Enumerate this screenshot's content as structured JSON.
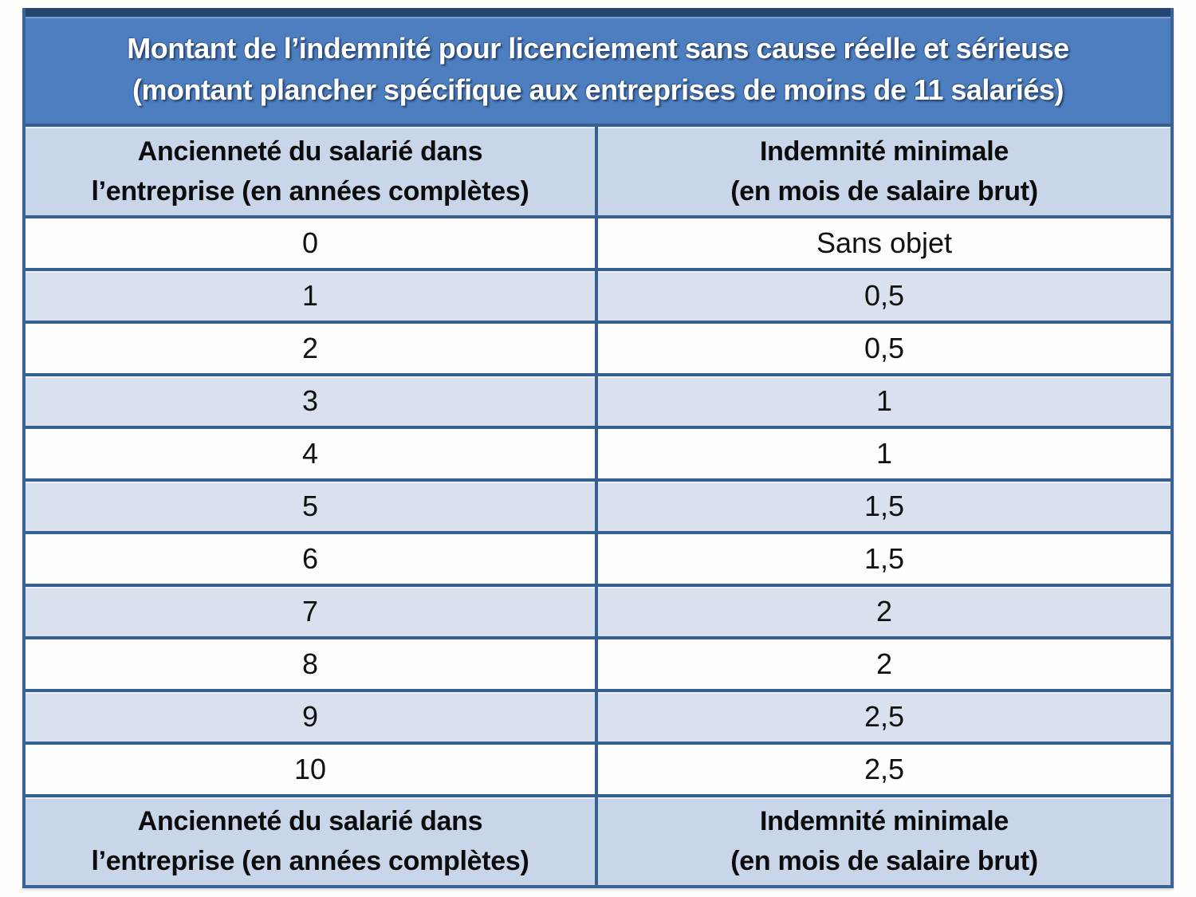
{
  "document": {
    "title": {
      "line1": "Montant de l’indemnité pour licenciement sans cause réelle et sérieuse",
      "line2": "(montant plancher spécifique aux entreprises de moins de 11 salariés)"
    },
    "columns": {
      "col1_line1": "Ancienneté du salarié dans",
      "col1_line2": "l’entreprise (en années complètes)",
      "col2_line1": "Indemnité minimale",
      "col2_line2": "(en mois de salaire brut)"
    },
    "rows": [
      {
        "years": "0",
        "amount": "Sans objet"
      },
      {
        "years": "1",
        "amount": "0,5"
      },
      {
        "years": "2",
        "amount": "0,5"
      },
      {
        "years": "3",
        "amount": "1"
      },
      {
        "years": "4",
        "amount": "1"
      },
      {
        "years": "5",
        "amount": "1,5"
      },
      {
        "years": "6",
        "amount": "1,5"
      },
      {
        "years": "7",
        "amount": "2"
      },
      {
        "years": "8",
        "amount": "2"
      },
      {
        "years": "9",
        "amount": "2,5"
      },
      {
        "years": "10",
        "amount": "2,5"
      }
    ],
    "colors": {
      "title_bg": "#4d7ebf",
      "title_top_border": "#24456e",
      "header_bg": "#c9d5e8",
      "row_alt_bg": "#d9e1ee",
      "grid_border": "#35608f",
      "title_text": "#ffffff",
      "body_text": "#111111"
    }
  }
}
